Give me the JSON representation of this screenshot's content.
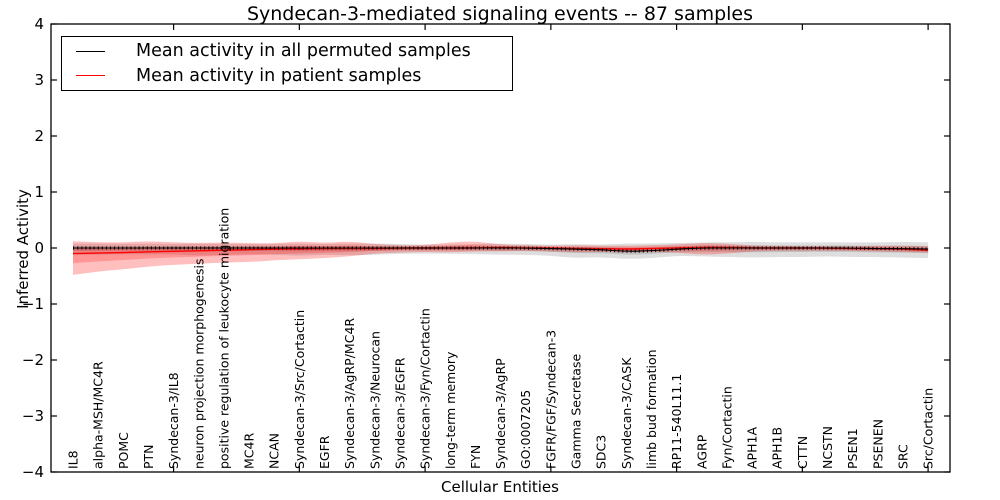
{
  "title": "Syndecan-3-mediated signaling events -- 87 samples",
  "axes": {
    "ylabel": "Inferred Activity",
    "xlabel": "Cellular Entities",
    "yticks": [
      4,
      3,
      2,
      1,
      0,
      -1,
      -2,
      -3,
      -4
    ],
    "xtick_step": 5
  },
  "legend": {
    "position": "upper left",
    "items": [
      {
        "label": "Mean activity in all permuted samples",
        "color": "#000000"
      },
      {
        "label": "Mean activity in patient samples",
        "color": "#ff0000"
      }
    ]
  },
  "chart_data": {
    "type": "line",
    "title": "Syndecan-3-mediated signaling events -- 87 samples",
    "xlabel": "Cellular Entities",
    "ylabel": "Inferred Activity",
    "ylim": [
      -4,
      4
    ],
    "grid": false,
    "legend_position": "upper left",
    "categories": [
      "IL8",
      "alpha-MSH/MC4R",
      "POMC",
      "PTN",
      "Syndecan-3/IL8",
      "neuron projection morphogenesis",
      "positive regulation of leukocyte migration",
      "MC4R",
      "NCAN",
      "Syndecan-3/Src/Cortactin",
      "EGFR",
      "Syndecan-3/AgRP/MC4R",
      "Syndecan-3/Neurocan",
      "Syndecan-3/EGFR",
      "Syndecan-3/Fyn/Cortactin",
      "long-term memory",
      "FYN",
      "Syndecan-3/AgRP",
      "GO:0007205",
      "FGFR/FGF/Syndecan-3",
      "Gamma Secretase",
      "SDC3",
      "Syndecan-3/CASK",
      "limb bud formation",
      "RP11-540L11.1",
      "AGRP",
      "Fyn/Cortactin",
      "APH1A",
      "APH1B",
      "CTTN",
      "NCSTN",
      "PSEN1",
      "PSENEN",
      "SRC",
      "Src/Cortactin"
    ],
    "series": [
      {
        "name": "Mean activity in all permuted samples",
        "color": "#000000",
        "values": [
          0,
          0,
          0,
          0,
          0,
          0,
          0,
          0,
          0,
          0,
          0,
          0,
          0,
          0,
          0,
          0,
          0,
          0,
          0,
          -0.01,
          -0.02,
          -0.03,
          -0.06,
          -0.05,
          -0.02,
          0,
          0,
          0,
          0,
          0,
          0,
          0,
          -0.01,
          -0.01,
          -0.02
        ]
      },
      {
        "name": "Mean activity in patient samples",
        "color": "#ff0000",
        "values": [
          -0.1,
          -0.09,
          -0.08,
          -0.07,
          -0.06,
          -0.05,
          -0.04,
          -0.03,
          -0.02,
          -0.02,
          -0.01,
          -0.01,
          -0.01,
          0,
          0,
          0,
          0,
          0.01,
          0,
          0,
          -0.01,
          -0.01,
          -0.02,
          -0.01,
          0,
          0.01,
          0.01,
          0,
          0,
          0,
          0,
          -0.01,
          -0.01,
          -0.02,
          -0.04
        ]
      }
    ],
    "bands": [
      {
        "name": "permuted-samples-range",
        "color": "#000000",
        "alpha": 0.13,
        "upper": [
          0.08,
          0.08,
          0.07,
          0.08,
          0.07,
          0.08,
          0.07,
          0.07,
          0.07,
          0.08,
          0.07,
          0.08,
          0.08,
          0.07,
          0.06,
          0.06,
          0.07,
          0.08,
          0.07,
          0.06,
          0.07,
          0.06,
          0.08,
          0.08,
          0.09,
          0.1,
          0.1,
          0.11,
          0.1,
          0.1,
          0.1,
          0.1,
          0.1,
          0.11,
          0.1
        ],
        "lower": [
          -0.12,
          -0.12,
          -0.11,
          -0.12,
          -0.11,
          -0.14,
          -0.12,
          -0.11,
          -0.12,
          -0.14,
          -0.12,
          -0.13,
          -0.12,
          -0.1,
          -0.1,
          -0.1,
          -0.11,
          -0.12,
          -0.12,
          -0.14,
          -0.18,
          -0.16,
          -0.2,
          -0.18,
          -0.14,
          -0.15,
          -0.16,
          -0.17,
          -0.16,
          -0.16,
          -0.15,
          -0.16,
          -0.16,
          -0.17,
          -0.18
        ]
      },
      {
        "name": "patient-samples-range",
        "color": "#ff0000",
        "alpha": 0.25,
        "upper": [
          0.12,
          0.1,
          0.1,
          0.12,
          0.1,
          0.09,
          0.1,
          0.09,
          0.08,
          0.12,
          0.09,
          0.12,
          0.07,
          0.05,
          0.05,
          0.1,
          0.12,
          0.06,
          0.05,
          0.04,
          0.05,
          0.04,
          0.04,
          0.05,
          0.06,
          0.09,
          0.08,
          0.04,
          0.04,
          0.03,
          0.03,
          0.03,
          0.04,
          0.04,
          0.03
        ],
        "lower": [
          -0.48,
          -0.42,
          -0.38,
          -0.33,
          -0.3,
          -0.28,
          -0.26,
          -0.25,
          -0.22,
          -0.2,
          -0.18,
          -0.15,
          -0.1,
          -0.08,
          -0.07,
          -0.08,
          -0.06,
          -0.06,
          -0.05,
          -0.06,
          -0.08,
          -0.07,
          -0.08,
          -0.07,
          -0.08,
          -0.12,
          -0.1,
          -0.06,
          -0.05,
          -0.05,
          -0.05,
          -0.05,
          -0.06,
          -0.07,
          -0.08
        ]
      }
    ]
  }
}
